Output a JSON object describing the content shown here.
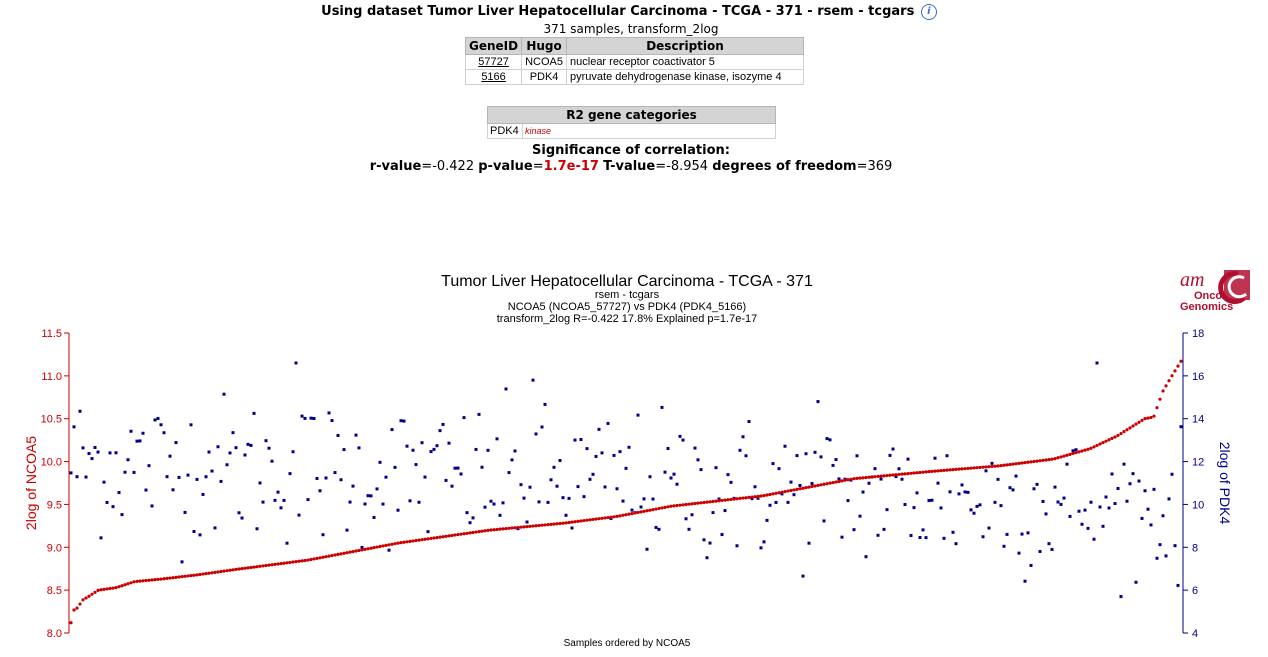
{
  "header": {
    "title": "Using dataset Tumor Liver Hepatocellular Carcinoma - TCGA - 371 - rsem - tcgars",
    "info_icon": "i",
    "subtitle": "371 samples, transform_2log"
  },
  "gene_table": {
    "headers": [
      "GeneID",
      "Hugo",
      "Description"
    ],
    "rows": [
      {
        "id": "57727",
        "hugo": "NCOA5",
        "desc": "nuclear receptor coactivator 5"
      },
      {
        "id": "5166",
        "hugo": "PDK4",
        "desc": "pyruvate dehydrogenase kinase, isozyme 4"
      }
    ]
  },
  "categories_table": {
    "header": "R2 gene categories",
    "gene": "PDK4",
    "category": "kinase"
  },
  "significance": {
    "title": "Significance of correlation:",
    "r_label": "r-value",
    "r_value": "=-0.422",
    "p_label": "p-value",
    "eq": "=",
    "p_value": "1.7e-17",
    "t_label": "T-value",
    "t_value": "=-8.954",
    "df_label": "degrees of freedom",
    "df_value": "=369"
  },
  "logo": {
    "line1": "am",
    "line2": "Onco",
    "line3": "Genomics"
  },
  "chart_data": {
    "type": "scatter",
    "title": "Tumor Liver Hepatocellular Carcinoma  - TCGA - 371",
    "subtitle_lines": [
      "rsem - tcgars",
      "NCOA5 (NCOA5_57727) vs PDK4 (PDK4_5166)",
      "transform_2log R=-0.422 17.8% Explained p=1.7e-17"
    ],
    "xlabel": "Samples ordered by NCOA5",
    "y_left_label": "2log of NCOA5",
    "y_right_label": "2log of PDK4",
    "n_samples": 371,
    "y_left_lim": [
      8.0,
      11.5
    ],
    "y_left_ticks": [
      "8.0",
      "8.5",
      "9.0",
      "9.5",
      "10.0",
      "10.5",
      "11.0",
      "11.5"
    ],
    "y_right_lim": [
      4,
      18
    ],
    "y_right_ticks": [
      "4",
      "6",
      "8",
      "10",
      "12",
      "14",
      "16",
      "18"
    ],
    "series": [
      {
        "name": "NCOA5",
        "color": "#cc0000",
        "axis": "left",
        "anchors": [
          [
            0,
            8.12
          ],
          [
            1,
            8.26
          ],
          [
            4,
            8.3
          ],
          [
            6,
            8.38
          ],
          [
            10,
            8.43
          ],
          [
            15,
            8.5
          ],
          [
            25,
            8.53
          ],
          [
            35,
            8.6
          ],
          [
            50,
            8.63
          ],
          [
            70,
            8.68
          ],
          [
            90,
            8.74
          ],
          [
            130,
            8.85
          ],
          [
            180,
            9.05
          ],
          [
            230,
            9.2
          ],
          [
            270,
            9.28
          ],
          [
            300,
            9.36
          ],
          [
            330,
            9.48
          ],
          [
            380,
            9.6
          ],
          [
            430,
            9.8
          ],
          [
            470,
            9.88
          ],
          [
            510,
            9.95
          ],
          [
            540,
            10.03
          ],
          [
            560,
            10.15
          ],
          [
            575,
            10.3
          ],
          [
            590,
            10.5
          ],
          [
            595,
            10.52
          ],
          [
            600,
            10.82
          ],
          [
            605,
            11.0
          ],
          [
            610,
            11.17
          ]
        ]
      },
      {
        "name": "PDK4",
        "color": "#00008b",
        "axis": "right",
        "generated": "approximate scatter, mean 11.2, sd 1.8, highs to 16.6"
      }
    ]
  }
}
